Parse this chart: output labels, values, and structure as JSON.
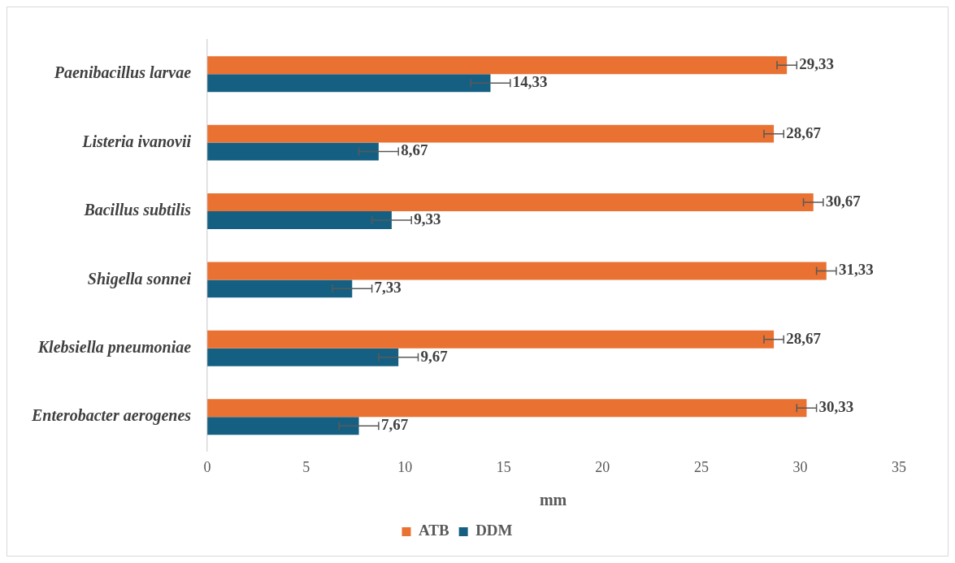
{
  "chart_data": {
    "type": "bar",
    "orientation": "horizontal",
    "xlabel": "mm",
    "categories": [
      "Paenibacillus larvae",
      "Listeria ivanovii",
      "Bacillus subtilis",
      "Shigella sonnei",
      "Klebsiella pneumoniae",
      "Enterobacter aerogenes"
    ],
    "series": [
      {
        "name": "ATB",
        "color": "#e97132",
        "values": [
          29.33,
          28.67,
          30.67,
          31.33,
          28.67,
          30.33
        ],
        "errors": [
          0.5,
          0.5,
          0.5,
          0.5,
          0.5,
          0.5
        ],
        "value_labels": [
          "29,33",
          "28,67",
          "30,67",
          "31,33",
          "28,67",
          "30,33"
        ]
      },
      {
        "name": "DDM",
        "color": "#156082",
        "values": [
          14.33,
          8.67,
          9.33,
          7.33,
          9.67,
          7.67
        ],
        "errors": [
          1,
          1,
          1,
          1,
          1,
          1
        ],
        "value_labels": [
          "14,33",
          "8,67",
          "9,33",
          "7,33",
          "9,67",
          "7,67"
        ]
      }
    ],
    "xlim": [
      0,
      35
    ],
    "xticks": [
      0,
      5,
      10,
      15,
      20,
      25,
      30,
      35
    ],
    "grid": false,
    "legend": "bottom"
  }
}
